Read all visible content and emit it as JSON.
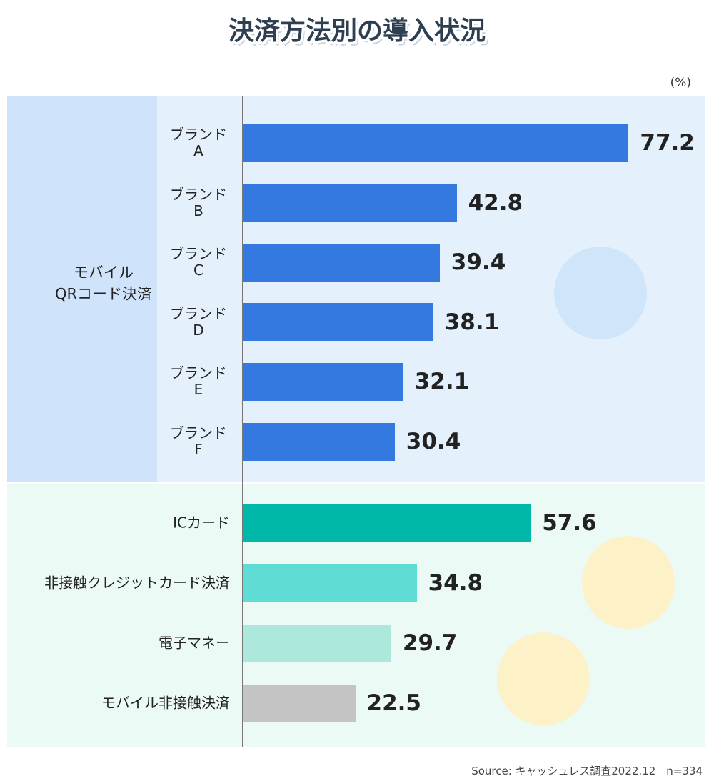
{
  "chart_data": {
    "type": "bar",
    "orientation": "horizontal",
    "title": "決済方法別の導入状況",
    "unit_label": "(%)",
    "source": "Source: キャッシュレス調査2022.12　n=334",
    "groups": [
      {
        "name": "モバイル\nQRコード決済",
        "categories": [
          "ブランド\nA",
          "ブランド\nB",
          "ブランド\nC",
          "ブランド\nD",
          "ブランド\nE",
          "ブランド\nF"
        ],
        "values": [
          77.2,
          42.8,
          39.4,
          38.1,
          32.1,
          30.4
        ],
        "colors": [
          "#3479e0",
          "#3479e0",
          "#3479e0",
          "#3479e0",
          "#3479e0",
          "#3479e0"
        ]
      },
      {
        "categories": [
          "ICカード",
          "非接触クレジットカード決済",
          "電子マネー",
          "モバイル非接触決済"
        ],
        "values": [
          57.6,
          34.8,
          29.7,
          22.5
        ],
        "colors": [
          "#00b8aa",
          "#5fdcd3",
          "#ace9dc",
          "#c4c4c4"
        ]
      }
    ]
  }
}
